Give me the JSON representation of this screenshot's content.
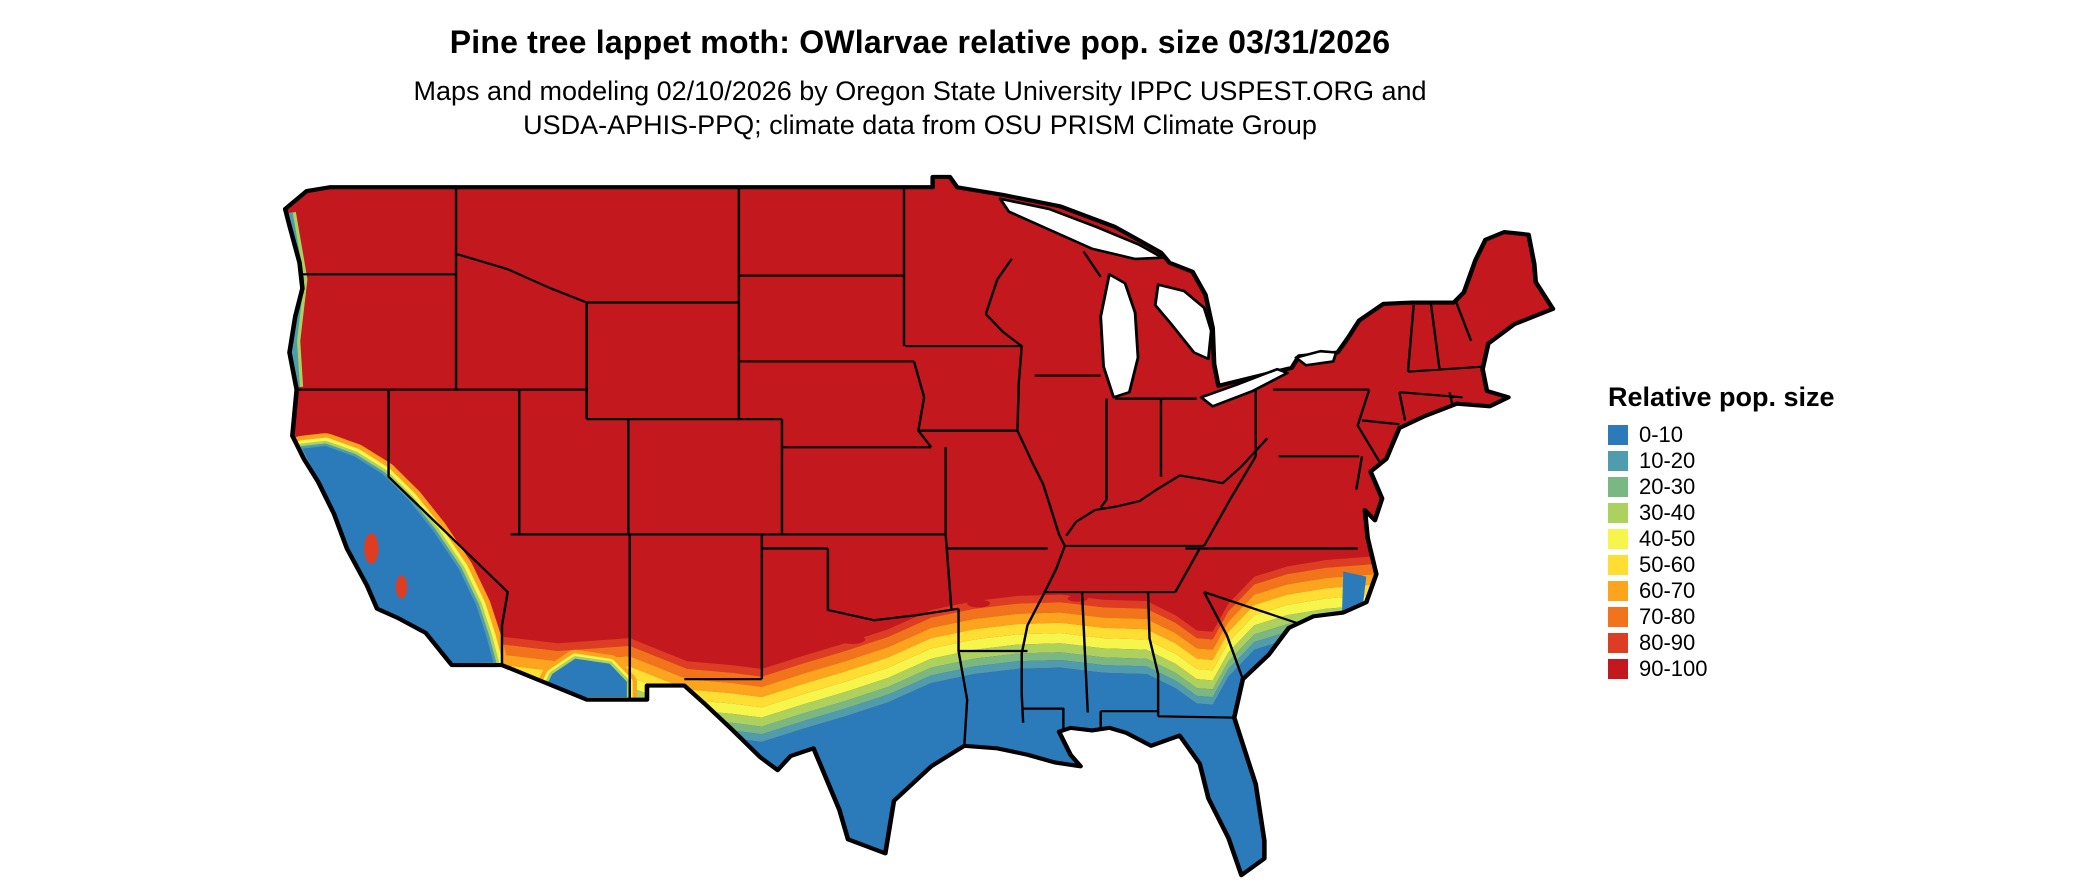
{
  "title": "Pine tree lappet moth: OWlarvae relative pop. size 03/31/2026",
  "subtitle_line1": "Maps and modeling 02/10/2026 by Oregon State University IPPC USPEST.ORG and",
  "subtitle_line2": "USDA-APHIS-PPQ; climate data from OSU PRISM Climate Group",
  "legend": {
    "title": "Relative pop. size",
    "items": [
      {
        "label": "0-10",
        "color": "#2b7bba"
      },
      {
        "label": "10-20",
        "color": "#4e9cae"
      },
      {
        "label": "20-30",
        "color": "#7ab883"
      },
      {
        "label": "30-40",
        "color": "#acd15e"
      },
      {
        "label": "40-50",
        "color": "#f6f54b"
      },
      {
        "label": "50-60",
        "color": "#fede33"
      },
      {
        "label": "60-70",
        "color": "#fca41e"
      },
      {
        "label": "70-80",
        "color": "#f1731c"
      },
      {
        "label": "80-90",
        "color": "#dd3d23"
      },
      {
        "label": "90-100",
        "color": "#c2181e"
      }
    ]
  }
}
